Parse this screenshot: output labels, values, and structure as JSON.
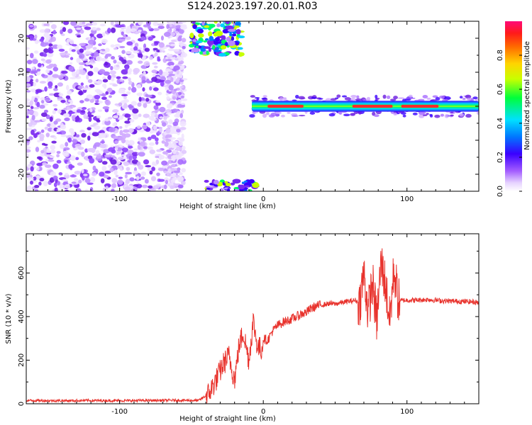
{
  "title": "S124.2023.197.20.01.R03",
  "colors": {
    "snr_line": "#e8322c",
    "spectrogram_noise": "#8a2be2",
    "axes": "#000000"
  },
  "chart_data": [
    {
      "type": "heatmap",
      "xlabel": "Height of straight line (km)",
      "ylabel": "Frequency (Hz)",
      "xlim": [
        -165,
        150
      ],
      "ylim": [
        -25,
        25
      ],
      "xticks": [
        -100,
        0,
        100
      ],
      "yticks": [
        -20,
        -10,
        0,
        10,
        20
      ],
      "colorbar": {
        "label": "Normalized spectral amplitude",
        "range": [
          0.0,
          1.0
        ],
        "ticks": [
          0.0,
          0.2,
          0.4,
          0.6,
          0.8
        ],
        "colormap": "rainbow (white-violet-blue-cyan-green-yellow-orange-red-magenta)"
      },
      "features": [
        {
          "description": "broadband noise speckle",
          "x_range": [
            -165,
            -55
          ],
          "y_range": [
            -25,
            25
          ],
          "amplitude": 0.1
        },
        {
          "description": "tone band",
          "x_range": [
            -8,
            150
          ],
          "center_hz": 0,
          "amplitude_peak": 0.85
        },
        {
          "description": "upper edge bloom",
          "x_range": [
            -50,
            -15
          ],
          "y_range": [
            15,
            25
          ],
          "amplitude_peak": 0.55
        },
        {
          "description": "lower edge bloom",
          "x_range": [
            -40,
            -5
          ],
          "y_range": [
            -25,
            -22
          ],
          "amplitude_peak": 0.5
        }
      ]
    },
    {
      "type": "line",
      "xlabel": "Height of straight line (km)",
      "ylabel": "SNR (10 * v/v)",
      "xlim": [
        -165,
        150
      ],
      "ylim": [
        0,
        780
      ],
      "xticks": [
        -100,
        0,
        100
      ],
      "yticks": [
        0,
        200,
        400,
        600
      ],
      "series": [
        {
          "x": [
            -165,
            -140,
            -120,
            -100,
            -80,
            -60,
            -45,
            -38,
            -32,
            -28,
            -24,
            -20,
            -17,
            -14,
            -10,
            -7,
            -4,
            -1,
            0,
            3,
            6,
            10,
            14,
            18,
            22,
            26,
            30,
            34,
            38,
            42,
            46,
            50,
            55,
            60,
            64,
            67,
            70,
            73,
            76,
            79,
            82,
            85,
            88,
            91,
            94,
            98,
            105,
            115,
            125,
            135,
            145,
            150
          ],
          "y": [
            15,
            14,
            15,
            14,
            15,
            16,
            15,
            45,
            120,
            180,
            220,
            110,
            260,
            330,
            200,
            380,
            260,
            250,
            300,
            290,
            330,
            360,
            375,
            385,
            395,
            410,
            420,
            440,
            450,
            455,
            460,
            458,
            465,
            470,
            475,
            460,
            600,
            420,
            560,
            380,
            650,
            550,
            380,
            620,
            470,
            475,
            475,
            478,
            472,
            470,
            468,
            465
          ]
        }
      ]
    }
  ]
}
